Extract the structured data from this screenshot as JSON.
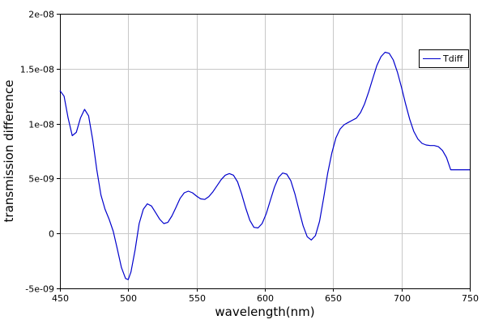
{
  "chart_data": {
    "type": "line",
    "title": "",
    "xlabel": "wavelength(nm)",
    "ylabel": "transmission difference",
    "xlim": [
      450,
      750
    ],
    "ylim": [
      -5e-09,
      2e-08
    ],
    "grid": true,
    "legend_position": "top-right",
    "x_ticks": [
      {
        "value": 450,
        "label": "450"
      },
      {
        "value": 500,
        "label": "500"
      },
      {
        "value": 550,
        "label": "550"
      },
      {
        "value": 600,
        "label": "600"
      },
      {
        "value": 650,
        "label": "650"
      },
      {
        "value": 700,
        "label": "700"
      },
      {
        "value": 750,
        "label": "750"
      }
    ],
    "y_ticks": [
      {
        "value": -5e-09,
        "label": "-5e-09"
      },
      {
        "value": 0,
        "label": "0"
      },
      {
        "value": 5e-09,
        "label": "5e-09"
      },
      {
        "value": 1e-08,
        "label": "1e-08"
      },
      {
        "value": 1.5e-08,
        "label": "1.5e-08"
      },
      {
        "value": 2e-08,
        "label": "2e-08"
      }
    ],
    "series": [
      {
        "name": "Tdiff",
        "color": "#0000cc",
        "x": [
          450,
          453,
          456,
          459,
          462,
          465,
          468,
          471,
          474,
          477,
          480,
          483,
          486,
          489,
          492,
          495,
          498,
          500,
          502,
          505,
          508,
          511,
          514,
          517,
          520,
          523,
          526,
          529,
          532,
          535,
          538,
          541,
          544,
          547,
          550,
          553,
          556,
          559,
          562,
          565,
          568,
          571,
          574,
          577,
          580,
          583,
          586,
          589,
          592,
          595,
          598,
          601,
          604,
          607,
          610,
          613,
          616,
          619,
          622,
          625,
          628,
          631,
          634,
          637,
          640,
          643,
          646,
          649,
          652,
          655,
          658,
          661,
          664,
          667,
          670,
          673,
          676,
          679,
          682,
          685,
          688,
          691,
          694,
          697,
          700,
          703,
          706,
          709,
          712,
          715,
          718,
          721,
          724,
          727,
          730,
          733,
          736,
          739,
          742,
          745,
          748,
          750
        ],
        "y": [
          1.3e-08,
          1.25e-08,
          1.05e-08,
          8.9e-09,
          9.2e-09,
          1.05e-08,
          1.13e-08,
          1.07e-08,
          8.5e-09,
          5.8e-09,
          3.5e-09,
          2.2e-09,
          1.3e-09,
          2e-10,
          -1.4e-09,
          -3.1e-09,
          -4.1e-09,
          -4.2e-09,
          -3.5e-09,
          -1.5e-09,
          9e-10,
          2.2e-09,
          2.7e-09,
          2.5e-09,
          1.9e-09,
          1.3e-09,
          9e-10,
          1e-09,
          1.6e-09,
          2.4e-09,
          3.2e-09,
          3.7e-09,
          3.85e-09,
          3.7e-09,
          3.4e-09,
          3.15e-09,
          3.1e-09,
          3.35e-09,
          3.8e-09,
          4.35e-09,
          4.9e-09,
          5.3e-09,
          5.45e-09,
          5.3e-09,
          4.7e-09,
          3.6e-09,
          2.3e-09,
          1.2e-09,
          5.5e-10,
          5e-10,
          9e-10,
          1.8e-09,
          3e-09,
          4.2e-09,
          5.1e-09,
          5.5e-09,
          5.4e-09,
          4.8e-09,
          3.6e-09,
          2.1e-09,
          7e-10,
          -3e-10,
          -6e-10,
          -2e-10,
          1.1e-09,
          3.2e-09,
          5.5e-09,
          7.3e-09,
          8.7e-09,
          9.5e-09,
          9.9e-09,
          1.01e-08,
          1.03e-08,
          1.05e-08,
          1.1e-08,
          1.18e-08,
          1.29e-08,
          1.41e-08,
          1.53e-08,
          1.61e-08,
          1.65e-08,
          1.64e-08,
          1.58e-08,
          1.47e-08,
          1.33e-08,
          1.18e-08,
          1.04e-08,
          9.3e-09,
          8.6e-09,
          8.2e-09,
          8.05e-09,
          8e-09,
          8e-09,
          7.9e-09,
          7.55e-09,
          6.9e-09,
          5.8e-09,
          5.8e-09,
          5.8e-09,
          5.8e-09,
          5.8e-09,
          5.8e-09
        ]
      }
    ]
  }
}
